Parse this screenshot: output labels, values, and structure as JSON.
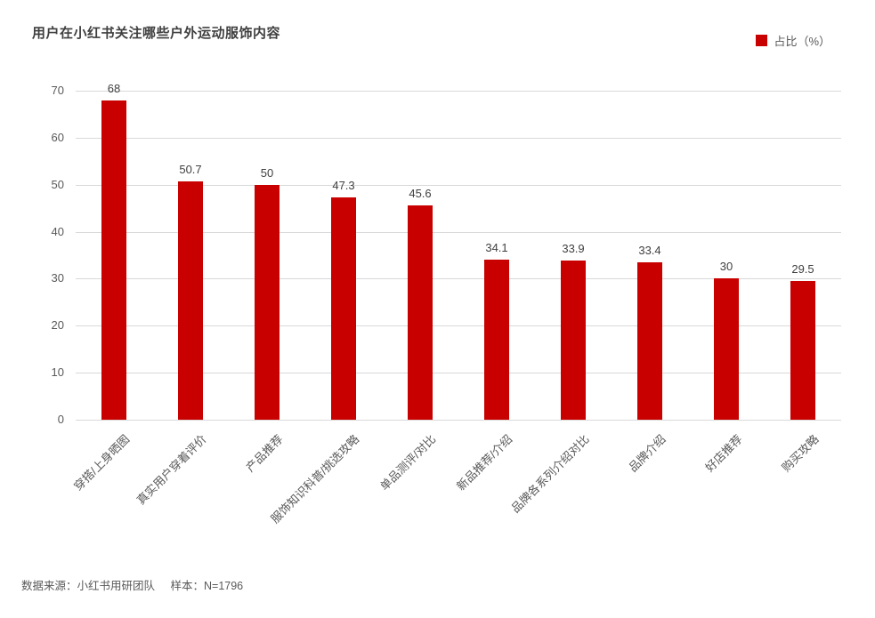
{
  "header": {
    "title": "用户在小红书关注哪些户外运动服饰内容"
  },
  "legend": {
    "label": "占比（%）",
    "swatch_color": "#c80000"
  },
  "chart_data": {
    "type": "bar",
    "title": "用户在小红书关注哪些户外运动服饰内容",
    "legend": "占比（%）",
    "categories": [
      "穿搭/上身晒图",
      "真实用户穿着评价",
      "产品推荐",
      "服饰知识科普/挑选攻略",
      "单品测评/对比",
      "新品推荐/介绍",
      "品牌各系列介绍对比",
      "品牌介绍",
      "好店推荐",
      "购买攻略"
    ],
    "values": [
      68,
      50.7,
      50,
      47.3,
      45.6,
      34.1,
      33.9,
      33.4,
      30,
      29.5
    ],
    "xlabel": "",
    "ylabel": "",
    "ylim": [
      0,
      70
    ],
    "ytick_step": 10,
    "grid": true,
    "bar_color": "#c80000",
    "gridline_color": "#d9d9d9",
    "legend_position": "top-right"
  },
  "footer": {
    "source": "数据来源：小红书用研团队",
    "sample": "样本：N=1796"
  }
}
